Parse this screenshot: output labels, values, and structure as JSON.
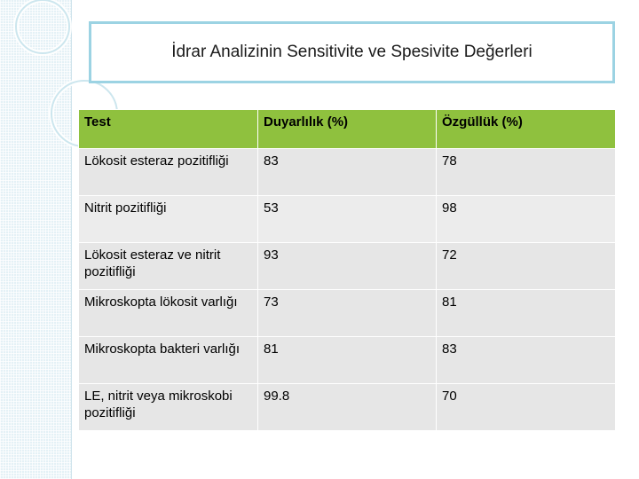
{
  "title": "İdrar Analizinin Sensitivite ve Spesivite Değerleri",
  "table": {
    "headers": [
      "Test",
      "Duyarlılık (%)",
      "Özgüllük (%)"
    ],
    "rows": [
      [
        "Lökosit esteraz pozitifliği",
        "83",
        "78"
      ],
      [
        "Nitrit pozitifliği",
        "53",
        "98"
      ],
      [
        "Lökosit esteraz ve nitrit pozitifliği",
        "93",
        "72"
      ],
      [
        "Mikroskopta lökosit varlığı",
        "73",
        "81"
      ],
      [
        "Mikroskopta bakteri varlığı",
        "81",
        "83"
      ],
      [
        "LE, nitrit veya mikroskobi pozitifliği",
        "99.8",
        "70"
      ]
    ]
  },
  "colors": {
    "header_green": "#8fc13e",
    "row_gray": "#e6e6e6",
    "title_border": "#9cd3e3",
    "side_panel": "#e4f1f6"
  }
}
